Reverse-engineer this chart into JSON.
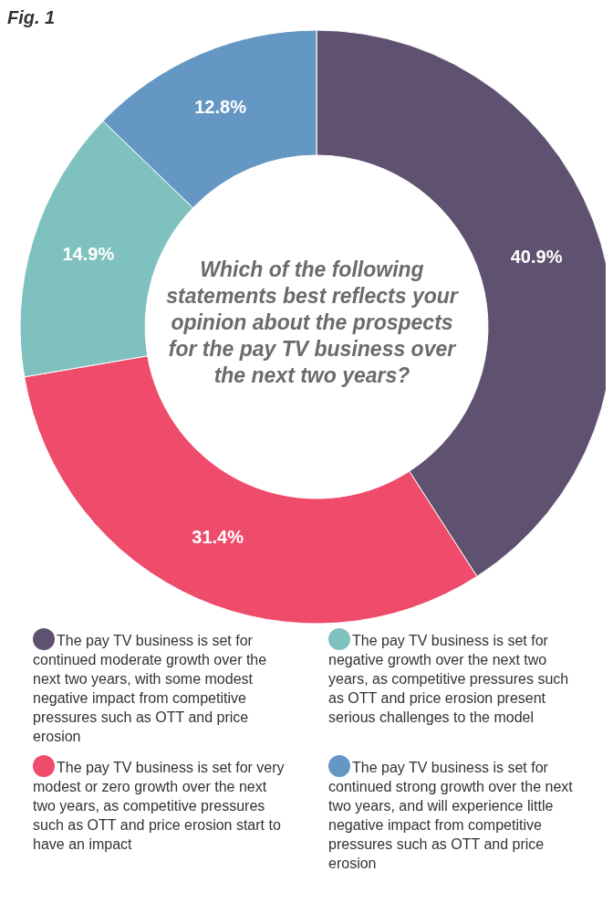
{
  "chart_data": {
    "type": "donut",
    "title": "Fig. 1",
    "subtitle": "Which of the following statements best reflects your opinion about the prospects for the pay TV business over the next two years?",
    "categories": [
      "The pay TV business is set for continued moderate growth over the next two years, with some modest negative impact from competitive pressures such as OTT and price erosion",
      "The pay TV business is set for very modest or zero growth over the next two years, as competitive pressures such as OTT and price erosion start to have an impact",
      "The pay TV business is set for negative growth over the next two years, as competitive pressures such as OTT and price erosion present serious challenges to the model",
      "The pay TV business is set for continued strong growth over the next two years, and will experience little negative impact from competitive pressures such as OTT and price erosion"
    ],
    "values": [
      40.9,
      31.4,
      14.9,
      12.8
    ],
    "colors": [
      "#5e5270",
      "#ef4b6b",
      "#7fc1bf",
      "#6497c4"
    ],
    "value_labels": [
      "40.9%",
      "31.4%",
      "14.9%",
      "12.8%"
    ],
    "legend": "bottom"
  }
}
